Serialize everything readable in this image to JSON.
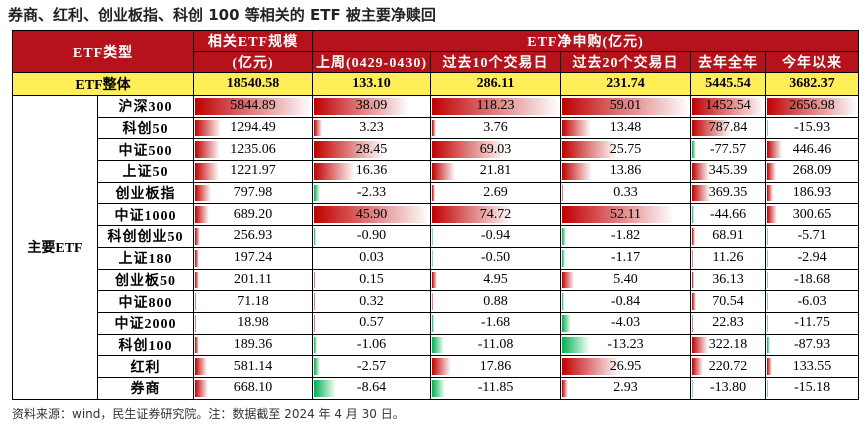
{
  "title": "券商、红利、创业板指、科创 100 等相关的 ETF 被主要净赎回",
  "header": {
    "first_col": "ETF类型",
    "scale_label": "相关ETF规模",
    "scale_unit": "(亿元)",
    "net_label": "ETF净申购(亿元)",
    "periods": [
      "上周(0429-0430)",
      "过去10个交易日",
      "过去20个交易日",
      "去年全年",
      "今年以来"
    ]
  },
  "total": {
    "name": "ETF整体",
    "values": [
      "18540.58",
      "133.10",
      "286.11",
      "231.74",
      "5445.54",
      "3682.37"
    ]
  },
  "group": "主要ETF",
  "rows": [
    {
      "name": "沪深300",
      "values": [
        "5844.89",
        "38.09",
        "118.23",
        "59.01",
        "1452.54",
        "2656.98"
      ]
    },
    {
      "name": "科创50",
      "values": [
        "1294.49",
        "3.23",
        "3.76",
        "13.48",
        "787.84",
        "-15.93"
      ]
    },
    {
      "name": "中证500",
      "values": [
        "1235.06",
        "28.45",
        "69.03",
        "25.75",
        "-77.57",
        "446.46"
      ]
    },
    {
      "name": "上证50",
      "values": [
        "1221.97",
        "16.36",
        "21.81",
        "13.86",
        "345.39",
        "268.09"
      ]
    },
    {
      "name": "创业板指",
      "values": [
        "797.98",
        "-2.33",
        "2.69",
        "0.33",
        "369.35",
        "186.93"
      ]
    },
    {
      "name": "中证1000",
      "values": [
        "689.20",
        "45.90",
        "74.72",
        "52.11",
        "-44.66",
        "300.65"
      ]
    },
    {
      "name": "科创创业50",
      "values": [
        "256.93",
        "-0.90",
        "-0.94",
        "-1.82",
        "68.91",
        "-5.71"
      ]
    },
    {
      "name": "上证180",
      "values": [
        "197.24",
        "0.03",
        "-0.50",
        "-1.17",
        "11.26",
        "-2.94"
      ]
    },
    {
      "name": "创业板50",
      "values": [
        "201.11",
        "0.15",
        "4.95",
        "5.40",
        "36.13",
        "-18.68"
      ]
    },
    {
      "name": "中证800",
      "values": [
        "71.18",
        "0.32",
        "0.88",
        "-0.84",
        "70.54",
        "-6.03"
      ]
    },
    {
      "name": "中证2000",
      "values": [
        "18.98",
        "0.57",
        "-1.68",
        "-4.03",
        "22.83",
        "-11.75"
      ]
    },
    {
      "name": "科创100",
      "values": [
        "189.36",
        "-1.06",
        "-11.08",
        "-13.23",
        "322.18",
        "-87.93"
      ]
    },
    {
      "name": "红利",
      "values": [
        "581.14",
        "-2.57",
        "17.86",
        "26.95",
        "220.72",
        "133.55"
      ]
    },
    {
      "name": "券商",
      "values": [
        "668.10",
        "-8.64",
        "-11.85",
        "2.93",
        "-13.80",
        "-15.18"
      ]
    }
  ],
  "source": "资料来源：wind，民生证券研究院。注：数据截至 2024 年 4 月 30 日。"
}
